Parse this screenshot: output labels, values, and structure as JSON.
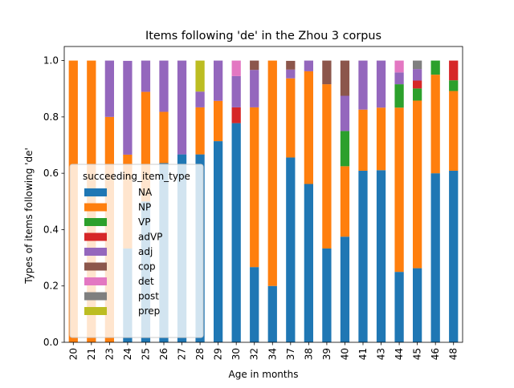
{
  "chart_data": {
    "type": "bar",
    "stacked": true,
    "title": "Items following 'de' in the Zhou 3 corpus",
    "xlabel": "Age in months",
    "ylabel": "Types of items following 'de'",
    "ylim": [
      0,
      1.05
    ],
    "yticks": [
      "0.0",
      "0.2",
      "0.4",
      "0.6",
      "0.8",
      "1.0"
    ],
    "categories": [
      "20",
      "21",
      "23",
      "24",
      "25",
      "26",
      "27",
      "28",
      "29",
      "30",
      "32",
      "34",
      "37",
      "38",
      "39",
      "40",
      "41",
      "43",
      "44",
      "45",
      "46",
      "48"
    ],
    "legend": {
      "title": "succeeding_item_type",
      "placement": "center-left"
    },
    "grid": false,
    "series": [
      {
        "name": "NA",
        "color": "#1f77b4",
        "values": [
          0,
          0,
          0,
          0.333,
          0.5,
          0.636,
          0.667,
          0.667,
          0.714,
          0.778,
          0.267,
          0.2,
          0.656,
          0.562,
          0.333,
          0.375,
          0.609,
          0.611,
          0.25,
          0.263,
          0.6,
          0.609
        ]
      },
      {
        "name": "NP",
        "color": "#ff7f0e",
        "values": [
          1.0,
          1.0,
          0.8,
          0.333,
          0.389,
          0.182,
          0,
          0.167,
          0.143,
          0,
          0.567,
          0.8,
          0.281,
          0.4,
          0.583,
          0.25,
          0.217,
          0.222,
          0.583,
          0.595,
          0.35,
          0.283
        ]
      },
      {
        "name": "VP",
        "color": "#2ca02c",
        "values": [
          0,
          0,
          0,
          0,
          0,
          0,
          0,
          0,
          0,
          0,
          0,
          0,
          0,
          0,
          0,
          0.125,
          0,
          0,
          0.083,
          0.043,
          0.05,
          0.038
        ]
      },
      {
        "name": "adVP",
        "color": "#d62728",
        "values": [
          0,
          0,
          0,
          0,
          0,
          0,
          0,
          0,
          0,
          0.056,
          0,
          0,
          0,
          0,
          0,
          0,
          0,
          0,
          0,
          0.028,
          0,
          0.07
        ]
      },
      {
        "name": "adj",
        "color": "#9467bd",
        "values": [
          0,
          0,
          0.2,
          0.333,
          0.111,
          0.182,
          0.333,
          0.056,
          0.143,
          0.111,
          0.133,
          0,
          0.031,
          0.038,
          0,
          0.125,
          0.174,
          0.167,
          0.042,
          0.041,
          0,
          0
        ]
      },
      {
        "name": "cop",
        "color": "#8c564b",
        "values": [
          0,
          0,
          0,
          0,
          0,
          0,
          0,
          0,
          0,
          0,
          0.033,
          0,
          0.031,
          0,
          0.084,
          0.125,
          0,
          0,
          0,
          0,
          0,
          0
        ]
      },
      {
        "name": "det",
        "color": "#e377c2",
        "values": [
          0,
          0,
          0,
          0,
          0,
          0,
          0,
          0,
          0,
          0.055,
          0,
          0,
          0,
          0,
          0,
          0,
          0,
          0,
          0.042,
          0,
          0,
          0
        ]
      },
      {
        "name": "post",
        "color": "#7f7f7f",
        "values": [
          0,
          0,
          0,
          0,
          0,
          0,
          0,
          0,
          0,
          0,
          0,
          0,
          0,
          0,
          0,
          0,
          0,
          0,
          0,
          0.03,
          0,
          0
        ]
      },
      {
        "name": "prep",
        "color": "#bcbd22",
        "values": [
          0,
          0,
          0,
          0,
          0,
          0,
          0,
          0.11,
          0,
          0,
          0,
          0,
          0,
          0,
          0,
          0,
          0,
          0,
          0,
          0,
          0,
          0
        ]
      }
    ]
  }
}
